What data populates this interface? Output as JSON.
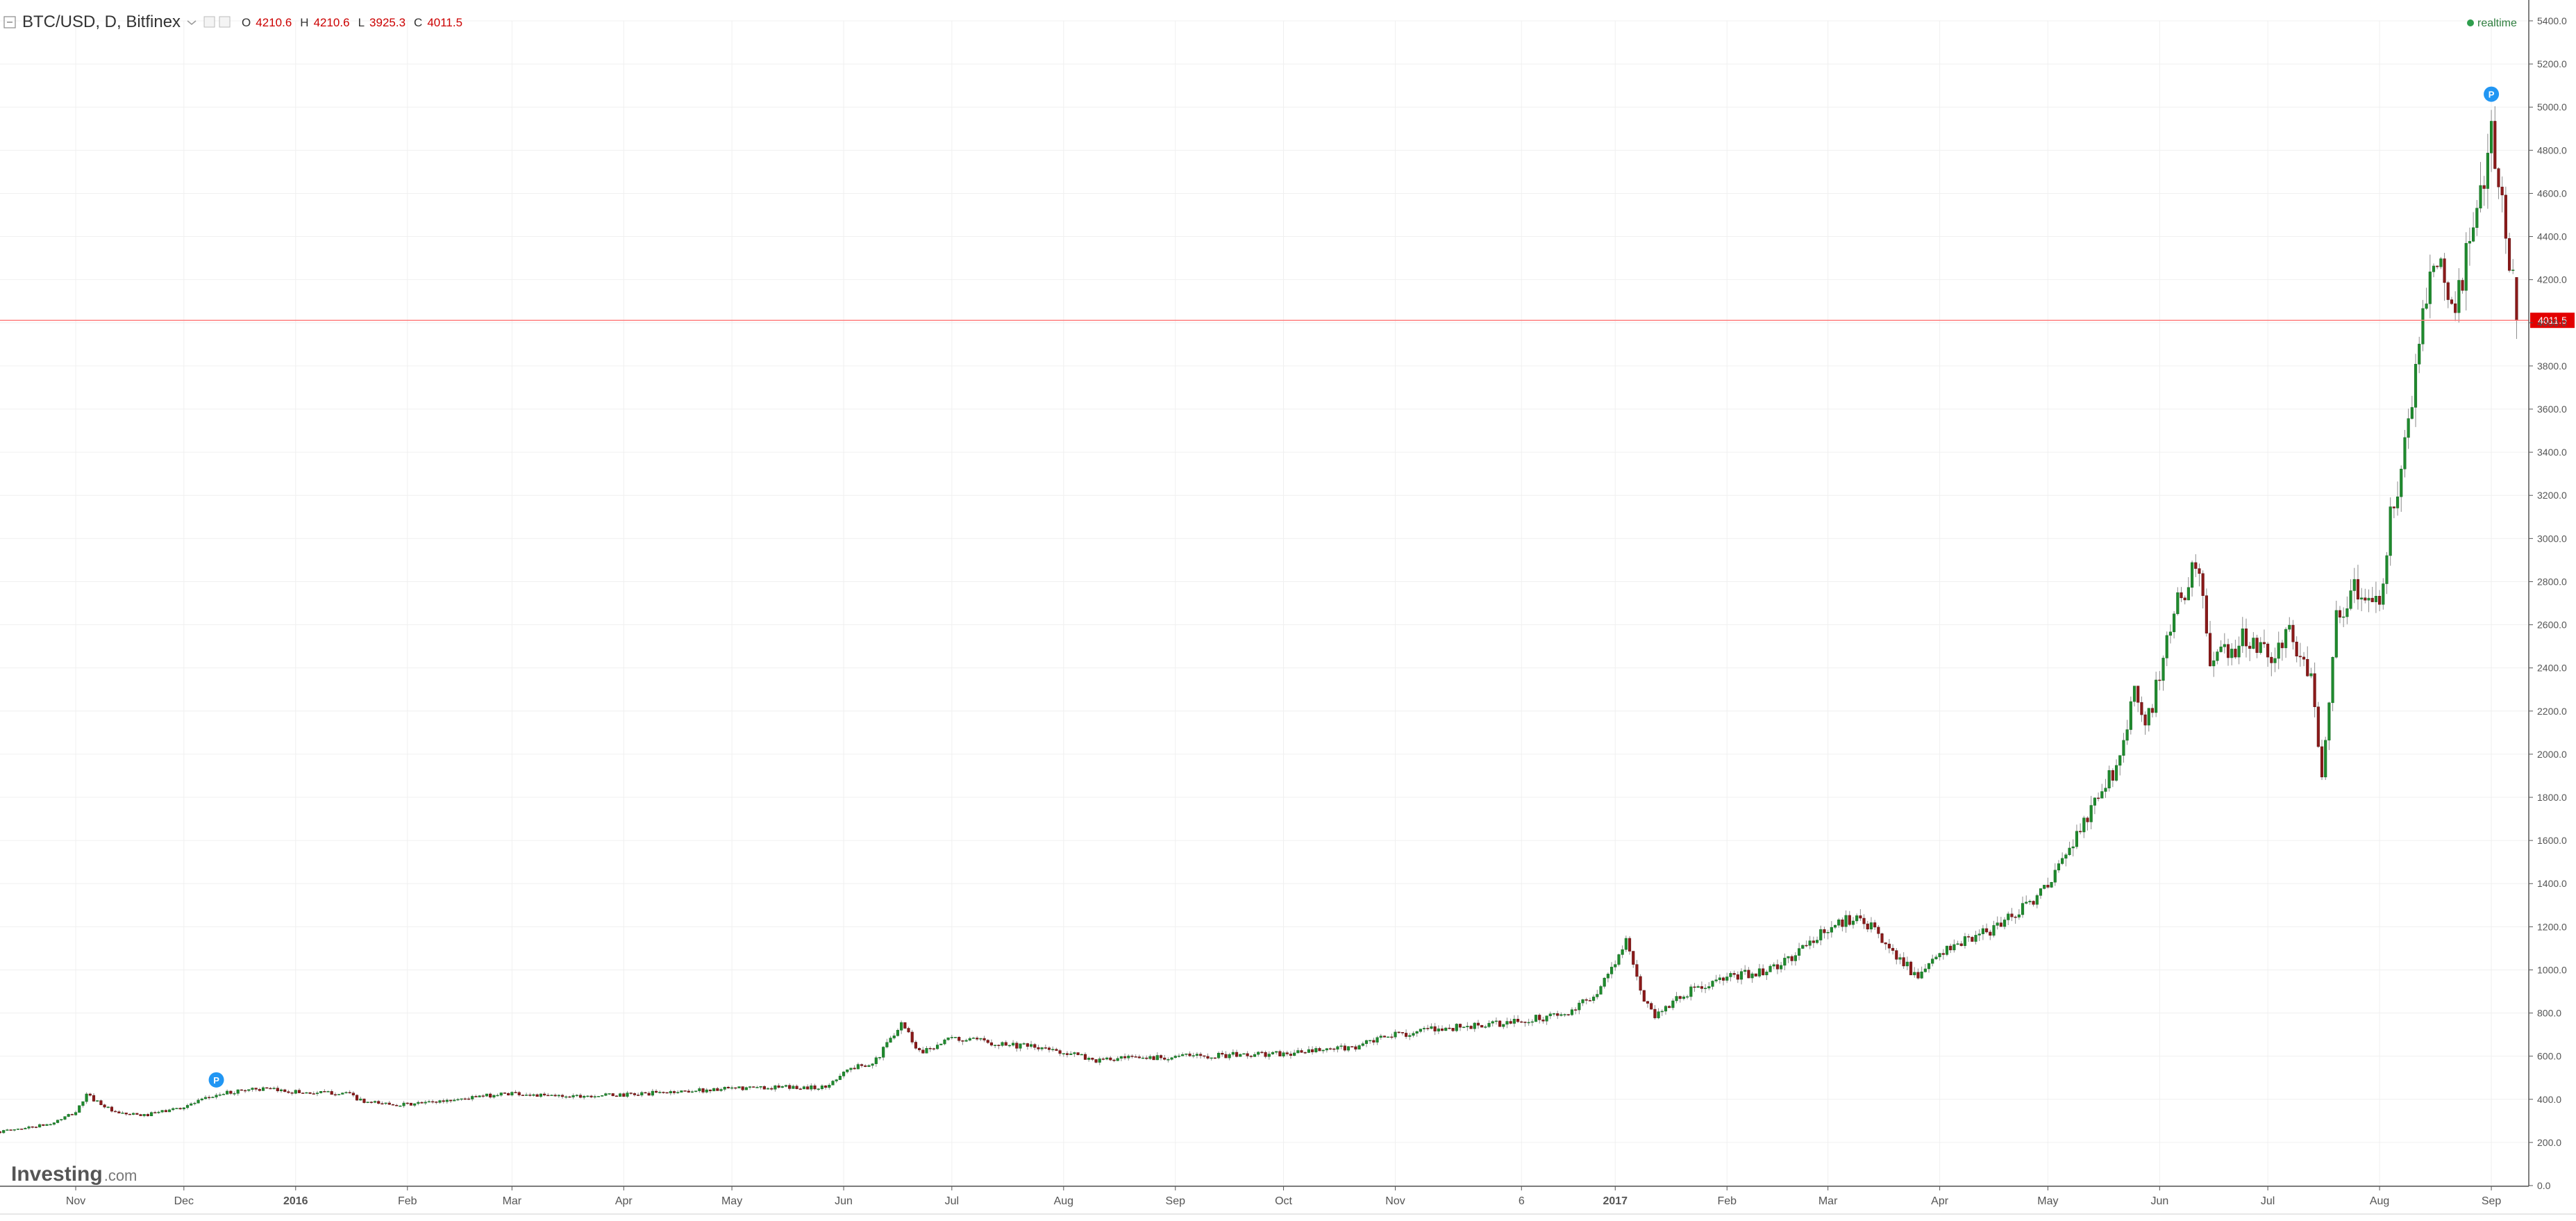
{
  "header": {
    "symbol": "BTC/USD, D, Bitfinex",
    "ohlc": [
      {
        "key": "O",
        "value": "4210.6"
      },
      {
        "key": "H",
        "value": "4210.6"
      },
      {
        "key": "L",
        "value": "3925.3"
      },
      {
        "key": "C",
        "value": "4011.5"
      }
    ],
    "realtime_label": "realtime"
  },
  "watermark": {
    "brand": "Investing",
    "suffix": ".com"
  },
  "colors": {
    "up": "#1f8a2e",
    "down": "#8b1a1a",
    "wick": "#8a8a8a",
    "price_line": "#ff8080",
    "price_badge": "#e30000",
    "ohlc_text": "#cc0000",
    "marker": "#2196f3",
    "realtime_dot": "#2e9e4d",
    "grid": "#f0f0f0",
    "axis": "#555555"
  },
  "icons": {
    "marker": "P",
    "collapse": "minus-square-icon"
  },
  "chart_data": {
    "type": "candlestick",
    "instrument": "BTC/USD",
    "interval": "D",
    "exchange": "Bitfinex",
    "y_axis": {
      "min": 0,
      "max": 5400,
      "step": 200,
      "ticks": [
        "0.0",
        "200.0",
        "400.0",
        "600.0",
        "800.0",
        "1000.0",
        "1200.0",
        "1400.0",
        "1600.0",
        "1800.0",
        "2000.0",
        "2200.0",
        "2400.0",
        "2600.0",
        "2800.0",
        "3000.0",
        "3200.0",
        "3400.0",
        "3600.0",
        "3800.0",
        "4000.0",
        "4200.0",
        "4400.0",
        "4600.0",
        "4800.0",
        "5000.0",
        "5200.0",
        "5400.0"
      ],
      "position": "right"
    },
    "x_axis": {
      "start": "2015-10-11",
      "end": "2017-09-11",
      "labels": [
        {
          "date": "2015-11-01",
          "text": "Nov",
          "bold": false
        },
        {
          "date": "2015-12-01",
          "text": "Dec",
          "bold": false
        },
        {
          "date": "2016-01-01",
          "text": "2016",
          "bold": true
        },
        {
          "date": "2016-02-01",
          "text": "Feb",
          "bold": false
        },
        {
          "date": "2016-03-01",
          "text": "Mar",
          "bold": false
        },
        {
          "date": "2016-04-01",
          "text": "Apr",
          "bold": false
        },
        {
          "date": "2016-05-01",
          "text": "May",
          "bold": false
        },
        {
          "date": "2016-06-01",
          "text": "Jun",
          "bold": false
        },
        {
          "date": "2016-07-01",
          "text": "Jul",
          "bold": false
        },
        {
          "date": "2016-08-01",
          "text": "Aug",
          "bold": false
        },
        {
          "date": "2016-09-01",
          "text": "Sep",
          "bold": false
        },
        {
          "date": "2016-10-01",
          "text": "Oct",
          "bold": false
        },
        {
          "date": "2016-11-01",
          "text": "Nov",
          "bold": false
        },
        {
          "date": "2016-12-06",
          "text": "6",
          "bold": false
        },
        {
          "date": "2017-01-01",
          "text": "2017",
          "bold": true
        },
        {
          "date": "2017-02-01",
          "text": "Feb",
          "bold": false
        },
        {
          "date": "2017-03-01",
          "text": "Mar",
          "bold": false
        },
        {
          "date": "2017-04-01",
          "text": "Apr",
          "bold": false
        },
        {
          "date": "2017-05-01",
          "text": "May",
          "bold": false
        },
        {
          "date": "2017-06-01",
          "text": "Jun",
          "bold": false
        },
        {
          "date": "2017-07-01",
          "text": "Jul",
          "bold": false
        },
        {
          "date": "2017-08-01",
          "text": "Aug",
          "bold": false
        },
        {
          "date": "2017-09-01",
          "text": "Sep",
          "bold": false
        }
      ]
    },
    "last_price": {
      "value": 4011.5,
      "label": "4011.5"
    },
    "markers": [
      {
        "date": "2015-12-10",
        "price": 490,
        "label": "P"
      },
      {
        "date": "2017-09-01",
        "price": 5060,
        "label": "P"
      }
    ],
    "path": [
      [
        "2015-10-11",
        250
      ],
      [
        "2015-10-25",
        285
      ],
      [
        "2015-11-01",
        340
      ],
      [
        "2015-11-04",
        420
      ],
      [
        "2015-11-08",
        380
      ],
      [
        "2015-11-12",
        335
      ],
      [
        "2015-11-20",
        325
      ],
      [
        "2015-12-01",
        365
      ],
      [
        "2015-12-10",
        420
      ],
      [
        "2015-12-20",
        450
      ],
      [
        "2016-01-05",
        430
      ],
      [
        "2016-01-15",
        430
      ],
      [
        "2016-01-20",
        385
      ],
      [
        "2016-02-01",
        375
      ],
      [
        "2016-02-15",
        400
      ],
      [
        "2016-03-01",
        430
      ],
      [
        "2016-03-10",
        415
      ],
      [
        "2016-04-01",
        420
      ],
      [
        "2016-04-20",
        440
      ],
      [
        "2016-05-10",
        455
      ],
      [
        "2016-05-27",
        455
      ],
      [
        "2016-06-01",
        530
      ],
      [
        "2016-06-10",
        580
      ],
      [
        "2016-06-17",
        760
      ],
      [
        "2016-06-22",
        620
      ],
      [
        "2016-07-01",
        680
      ],
      [
        "2016-07-15",
        660
      ],
      [
        "2016-08-01",
        620
      ],
      [
        "2016-08-10",
        580
      ],
      [
        "2016-09-01",
        600
      ],
      [
        "2016-10-01",
        610
      ],
      [
        "2016-10-20",
        640
      ],
      [
        "2016-11-01",
        700
      ],
      [
        "2016-11-15",
        730
      ],
      [
        "2016-12-01",
        750
      ],
      [
        "2016-12-20",
        800
      ],
      [
        "2016-12-28",
        920
      ],
      [
        "2017-01-04",
        1130
      ],
      [
        "2017-01-08",
        900
      ],
      [
        "2017-01-12",
        790
      ],
      [
        "2017-01-20",
        890
      ],
      [
        "2017-02-01",
        960
      ],
      [
        "2017-02-15",
        1010
      ],
      [
        "2017-03-01",
        1190
      ],
      [
        "2017-03-10",
        1260
      ],
      [
        "2017-03-15",
        1150
      ],
      [
        "2017-03-22",
        1040
      ],
      [
        "2017-03-26",
        950
      ],
      [
        "2017-04-01",
        1080
      ],
      [
        "2017-04-15",
        1180
      ],
      [
        "2017-05-01",
        1380
      ],
      [
        "2017-05-10",
        1650
      ],
      [
        "2017-05-20",
        1950
      ],
      [
        "2017-05-25",
        2300
      ],
      [
        "2017-05-28",
        2100
      ],
      [
        "2017-06-06",
        2700
      ],
      [
        "2017-06-12",
        2900
      ],
      [
        "2017-06-15",
        2400
      ],
      [
        "2017-06-25",
        2550
      ],
      [
        "2017-07-01",
        2450
      ],
      [
        "2017-07-07",
        2550
      ],
      [
        "2017-07-13",
        2350
      ],
      [
        "2017-07-16",
        1920
      ],
      [
        "2017-07-20",
        2650
      ],
      [
        "2017-07-25",
        2750
      ],
      [
        "2017-08-01",
        2720
      ],
      [
        "2017-08-05",
        3200
      ],
      [
        "2017-08-08",
        3400
      ],
      [
        "2017-08-12",
        3850
      ],
      [
        "2017-08-15",
        4250
      ],
      [
        "2017-08-17",
        4350
      ],
      [
        "2017-08-22",
        4050
      ],
      [
        "2017-08-25",
        4300
      ],
      [
        "2017-08-30",
        4600
      ],
      [
        "2017-09-01",
        4900
      ],
      [
        "2017-09-03",
        4600
      ],
      [
        "2017-09-05",
        4400
      ],
      [
        "2017-09-07",
        4210.6
      ],
      [
        "2017-09-08",
        4011.5
      ]
    ]
  }
}
